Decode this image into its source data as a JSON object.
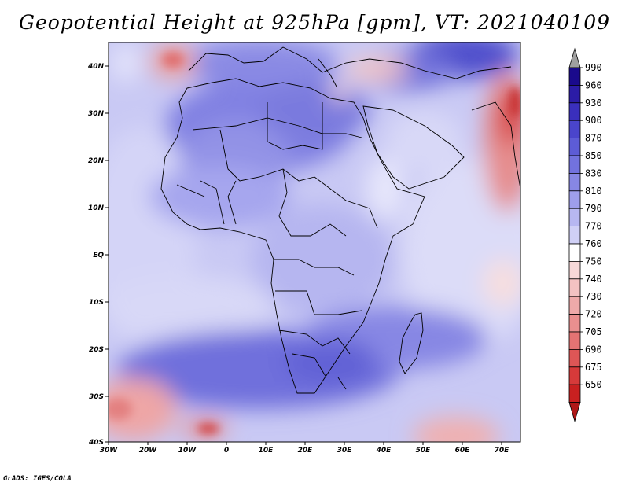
{
  "title": "Geopotential Height at 925hPa [gpm], VT: 2021040109",
  "credit": "GrADS: IGES/COLA",
  "map": {
    "lon_ticks": [
      "30W",
      "20W",
      "10W",
      "0",
      "10E",
      "20E",
      "30E",
      "40E",
      "50E",
      "60E",
      "70E"
    ],
    "lat_ticks": [
      "40N",
      "30N",
      "20N",
      "10N",
      "EQ",
      "10S",
      "20S",
      "30S",
      "40S"
    ]
  },
  "colorbar": {
    "levels": [
      "990",
      "960",
      "930",
      "900",
      "870",
      "850",
      "830",
      "810",
      "790",
      "770",
      "760",
      "750",
      "740",
      "730",
      "720",
      "705",
      "690",
      "675",
      "650"
    ],
    "colors": [
      "#1a0a8c",
      "#2b1ca6",
      "#3a2fbd",
      "#4a45cc",
      "#5d5cd6",
      "#7272de",
      "#8787e4",
      "#9e9eeb",
      "#b7b7f1",
      "#d0d0f6",
      "#ffffff",
      "#f7d8d8",
      "#f3c2c2",
      "#eea9a9",
      "#e98f8f",
      "#e47373",
      "#de5656",
      "#d63a3a",
      "#c82020"
    ],
    "top_arrow_color": "#a0a0a0",
    "bottom_arrow_color": "#b01818"
  }
}
